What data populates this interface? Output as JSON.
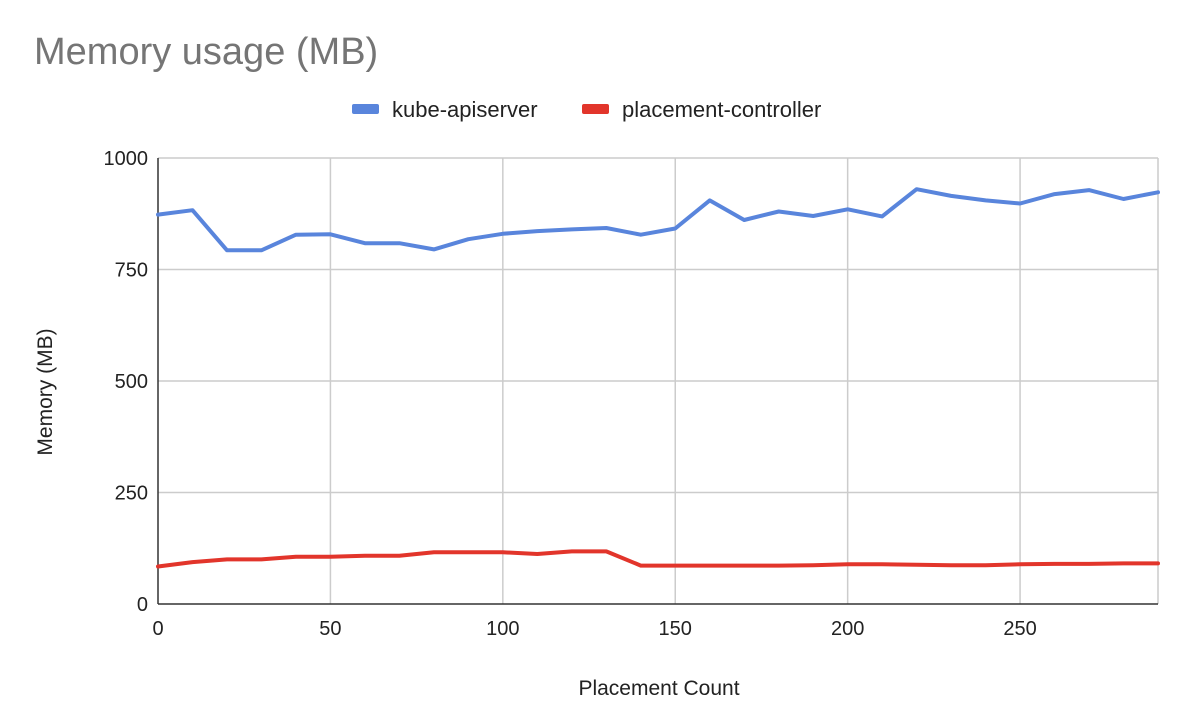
{
  "chart_data": {
    "type": "line",
    "title": "Memory usage (MB)",
    "xlabel": "Placement Count",
    "ylabel": "Memory (MB)",
    "xlim": [
      0,
      290
    ],
    "ylim": [
      0,
      1000
    ],
    "x_ticks": [
      0,
      50,
      100,
      150,
      200,
      250
    ],
    "y_ticks": [
      0,
      250,
      500,
      750,
      1000
    ],
    "grid": true,
    "legend_position": "top",
    "x": [
      0,
      10,
      20,
      30,
      40,
      50,
      60,
      70,
      80,
      90,
      100,
      110,
      120,
      130,
      140,
      150,
      160,
      170,
      180,
      190,
      200,
      210,
      220,
      230,
      240,
      250,
      260,
      270,
      280,
      290
    ],
    "series": [
      {
        "name": "kube-apiserver",
        "color": "#5985dc",
        "values": [
          873,
          883,
          793,
          793,
          828,
          829,
          809,
          809,
          795,
          818,
          830,
          836,
          840,
          843,
          828,
          842,
          905,
          861,
          880,
          870,
          885,
          869,
          930,
          915,
          905,
          898,
          919,
          928,
          908,
          923
        ]
      },
      {
        "name": "placement-controller",
        "color": "#e2352b",
        "values": [
          84,
          94,
          100,
          100,
          106,
          106,
          108,
          108,
          116,
          116,
          116,
          112,
          118,
          118,
          86,
          86,
          86,
          86,
          86,
          87,
          89,
          89,
          88,
          87,
          87,
          89,
          90,
          90,
          91,
          91
        ]
      }
    ]
  }
}
